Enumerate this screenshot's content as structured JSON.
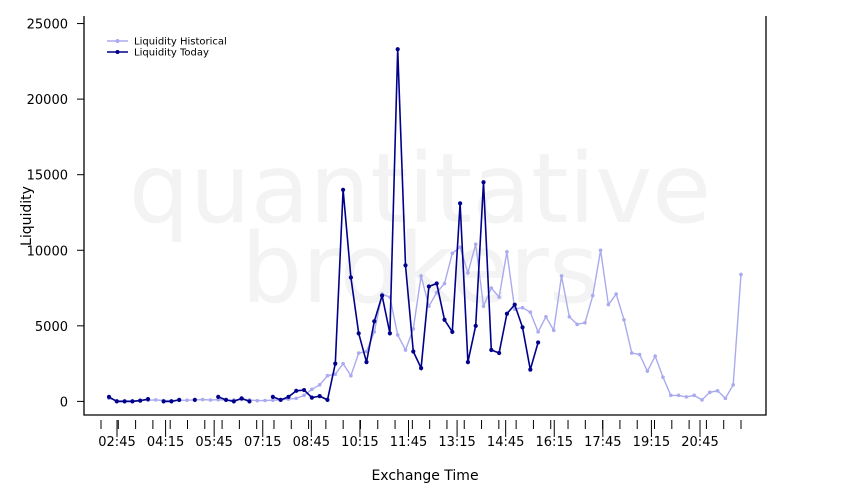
{
  "watermark": {
    "line1": "quantitative",
    "line2": "brokers"
  },
  "chart_data": {
    "type": "line",
    "xlabel": "Exchange Time",
    "ylabel": "Liquidity",
    "x_tick_labels": [
      "02:45",
      "04:15",
      "05:45",
      "07:15",
      "08:45",
      "10:15",
      "11:45",
      "13:15",
      "14:45",
      "16:15",
      "17:45",
      "19:15",
      "20:45"
    ],
    "x_minor_ticks": 38,
    "y_ticks": [
      0,
      5000,
      10000,
      15000,
      20000,
      25000
    ],
    "ylim": [
      -900,
      25500
    ],
    "grid": false,
    "legend_position": "top-left",
    "series": [
      {
        "name": "Liquidity Historical",
        "color": "#aaaaee",
        "values": [
          200,
          50,
          30,
          40,
          60,
          80,
          100,
          60,
          50,
          70,
          80,
          100,
          120,
          90,
          110,
          80,
          100,
          120,
          100,
          50,
          60,
          80,
          100,
          150,
          200,
          400,
          800,
          1100,
          1700,
          1800,
          2500,
          1700,
          3200,
          3300,
          4600,
          7100,
          6900,
          4400,
          3400,
          4800,
          8300,
          6300,
          7200,
          7800,
          9800,
          10200,
          8500,
          10400,
          6300,
          7500,
          6900,
          9900,
          6100,
          6200,
          5900,
          4600,
          5600,
          4700,
          8300,
          5600,
          5100,
          5200,
          7000,
          10000,
          6400,
          7100,
          5400,
          3200,
          3100,
          2000,
          3000,
          1600,
          400,
          400,
          300,
          400,
          100,
          600,
          700,
          200,
          1100,
          8400
        ]
      },
      {
        "name": "Liquidity Today",
        "color": "#00008b",
        "values": [
          300,
          0,
          0,
          0,
          50,
          150,
          null,
          0,
          0,
          100,
          null,
          100,
          null,
          null,
          300,
          100,
          0,
          200,
          0,
          null,
          null,
          300,
          100,
          300,
          700,
          750,
          250,
          350,
          100,
          2500,
          14000,
          8200,
          4500,
          2600,
          5300,
          7000,
          4500,
          23300,
          9000,
          3300,
          2200,
          7600,
          7800,
          5400,
          4600,
          13100,
          2600,
          5000,
          14500,
          3400,
          3200,
          5800,
          6400,
          4900,
          2100,
          3900
        ]
      }
    ]
  }
}
